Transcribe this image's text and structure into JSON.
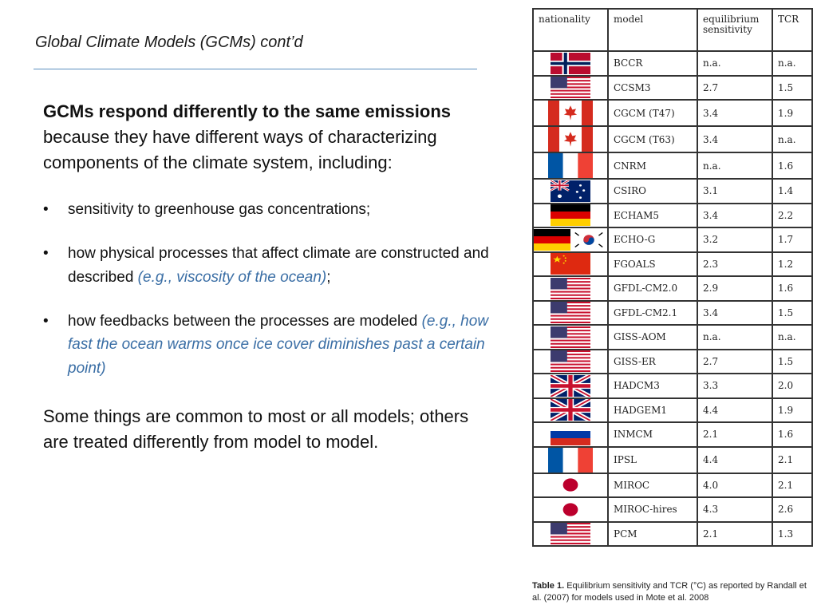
{
  "title": "Global Climate Models (GCMs) cont’d",
  "intro": {
    "bold": "GCMs respond differently to the same emissions",
    "rest": " because they have different ways of characterizing components of the climate system, including:"
  },
  "bullets": [
    {
      "text": "sensitivity to greenhouse gas concentrations;",
      "example": "",
      "tail": ""
    },
    {
      "text": "how physical processes that affect climate are constructed and described ",
      "example": "(e.g., viscosity of the ocean)",
      "tail": ";"
    },
    {
      "text": "how feedbacks between the processes are modeled ",
      "example": "(e.g., how fast the ocean warms once ice cover diminishes past a certain point)",
      "tail": ""
    }
  ],
  "outro": "Some things are common to most or all models; others are treated differently from model to model.",
  "table": {
    "headers": [
      "nationality",
      "model",
      "equilibrium sensitivity",
      "TCR"
    ],
    "rows": [
      {
        "flags": [
          "norway"
        ],
        "model": "BCCR",
        "es": "n.a.",
        "tcr": "n.a."
      },
      {
        "flags": [
          "usa"
        ],
        "model": "CCSM3",
        "es": "2.7",
        "tcr": "1.5"
      },
      {
        "flags": [
          "canada"
        ],
        "model": "CGCM (T47)",
        "es": "3.4",
        "tcr": "1.9"
      },
      {
        "flags": [
          "canada"
        ],
        "model": "CGCM (T63)",
        "es": "3.4",
        "tcr": "n.a."
      },
      {
        "flags": [
          "france"
        ],
        "model": "CNRM",
        "es": "n.a.",
        "tcr": "1.6"
      },
      {
        "flags": [
          "australia"
        ],
        "model": "CSIRO",
        "es": "3.1",
        "tcr": "1.4"
      },
      {
        "flags": [
          "germany"
        ],
        "model": "ECHAM5",
        "es": "3.4",
        "tcr": "2.2"
      },
      {
        "flags": [
          "germany",
          "korea"
        ],
        "model": "ECHO-G",
        "es": "3.2",
        "tcr": "1.7"
      },
      {
        "flags": [
          "china"
        ],
        "model": "FGOALS",
        "es": "2.3",
        "tcr": "1.2"
      },
      {
        "flags": [
          "usa"
        ],
        "model": "GFDL-CM2.0",
        "es": "2.9",
        "tcr": "1.6"
      },
      {
        "flags": [
          "usa"
        ],
        "model": "GFDL-CM2.1",
        "es": "3.4",
        "tcr": "1.5"
      },
      {
        "flags": [
          "usa"
        ],
        "model": "GISS-AOM",
        "es": "n.a.",
        "tcr": "n.a."
      },
      {
        "flags": [
          "usa"
        ],
        "model": "GISS-ER",
        "es": "2.7",
        "tcr": "1.5"
      },
      {
        "flags": [
          "uk"
        ],
        "model": "HADCM3",
        "es": "3.3",
        "tcr": "2.0"
      },
      {
        "flags": [
          "uk"
        ],
        "model": "HADGEM1",
        "es": "4.4",
        "tcr": "1.9"
      },
      {
        "flags": [
          "russia"
        ],
        "model": "INMCM",
        "es": "2.1",
        "tcr": "1.6"
      },
      {
        "flags": [
          "france"
        ],
        "model": "IPSL",
        "es": "4.4",
        "tcr": "2.1"
      },
      {
        "flags": [
          "japan"
        ],
        "model": "MIROC",
        "es": "4.0",
        "tcr": "2.1"
      },
      {
        "flags": [
          "japan"
        ],
        "model": "MIROC-hires",
        "es": "4.3",
        "tcr": "2.6"
      },
      {
        "flags": [
          "usa"
        ],
        "model": "PCM",
        "es": "2.1",
        "tcr": "1.3"
      }
    ]
  },
  "caption": {
    "label": "Table 1.",
    "text": "  Equilibrium sensitivity and TCR (°C) as reported by Randall et al. (2007) for models used in Mote et al. 2008"
  }
}
